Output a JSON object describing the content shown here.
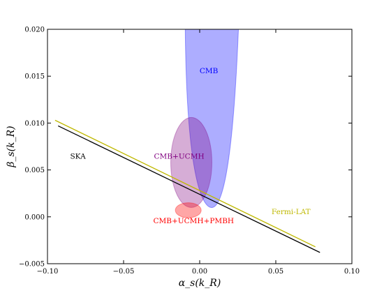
{
  "chart_data": {
    "type": "scatter",
    "xlabel": "α_s(k_R)",
    "ylabel": "β_s(k_R)",
    "xlim": [
      -0.1,
      0.1
    ],
    "ylim": [
      -0.005,
      0.02
    ],
    "x_ticks": [
      -0.1,
      -0.05,
      0.0,
      0.05,
      0.1
    ],
    "x_tick_labels": [
      "−0.10",
      "−0.05",
      "0.00",
      "0.05",
      "0.10"
    ],
    "y_ticks": [
      -0.005,
      0.0,
      0.005,
      0.01,
      0.015,
      0.02
    ],
    "y_tick_labels": [
      "−0.005",
      "0.000",
      "0.005",
      "0.010",
      "0.015",
      "0.020"
    ],
    "grid": false,
    "legend": "none",
    "lines": [
      {
        "label": "SKA",
        "color": "#000000",
        "x": [
          -0.093,
          0.079
        ],
        "y": [
          0.0097,
          -0.0038
        ]
      },
      {
        "label": "Fermi-LAT",
        "color": "#bfb800",
        "x": [
          -0.095,
          0.076
        ],
        "y": [
          0.0103,
          -0.0032
        ]
      }
    ],
    "regions": [
      {
        "label": "CMB",
        "color": "#0000ff",
        "opacity": 0.32,
        "shape": "parabola",
        "x_at_top": [
          -0.0095,
          0.0255
        ],
        "vertex": [
          0.0085,
          0.001
        ],
        "y_top": 0.02
      },
      {
        "label": "CMB+UCMH",
        "color": "#800080",
        "opacity": 0.32,
        "shape": "ellipse",
        "center": [
          -0.0055,
          0.0058
        ],
        "radius_x": 0.0135,
        "radius_y": 0.0048
      },
      {
        "label": "CMB+UCMH+PMBH",
        "color": "#ff0000",
        "opacity": 0.35,
        "shape": "ellipse",
        "center": [
          -0.0075,
          0.0007
        ],
        "radius_x": 0.0085,
        "radius_y": 0.0008
      }
    ],
    "annotations": [
      {
        "text": "CMB",
        "x": 0.006,
        "y": 0.0153,
        "color": "#0000ff"
      },
      {
        "text": "CMB+UCMH",
        "x": -0.0135,
        "y": 0.0062,
        "color": "#800080"
      },
      {
        "text": "SKA",
        "x": -0.08,
        "y": 0.0062,
        "color": "#000000"
      },
      {
        "text": "Fermi-LAT",
        "x": 0.06,
        "y": 0.0003,
        "color": "#bfb800"
      },
      {
        "text": "CMB+UCMH+PMBH",
        "x": -0.004,
        "y": -0.0007,
        "color": "#ff0000"
      }
    ]
  }
}
